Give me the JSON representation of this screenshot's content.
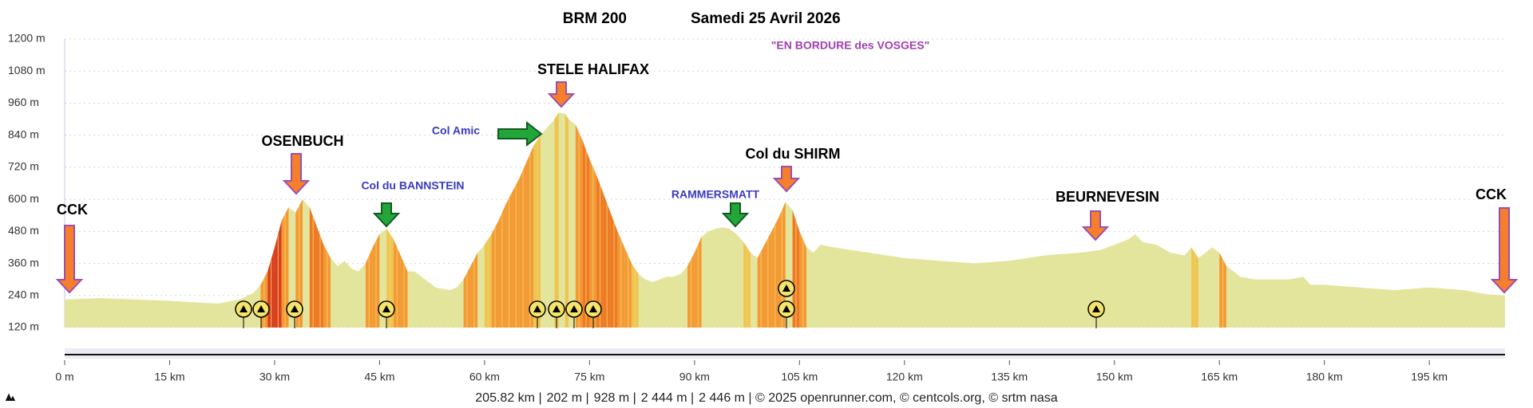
{
  "chart_data": {
    "type": "area",
    "title": "BRM 200",
    "date": "Samedi 25 Avril 2026",
    "subtitle": "\"EN BORDURE des VOSGES\"",
    "x": [
      0,
      5,
      10,
      15,
      20,
      22,
      25,
      27,
      28,
      29,
      30,
      31,
      32,
      33,
      34,
      35,
      36,
      37,
      38,
      39,
      40,
      41,
      42,
      43,
      44,
      45,
      46,
      47,
      48,
      49,
      50,
      51,
      52,
      53,
      55,
      56,
      57,
      58,
      59,
      60,
      61,
      62,
      63,
      64,
      65,
      66,
      67,
      68,
      69,
      70,
      70.6,
      71.5,
      72,
      73,
      74,
      75,
      76,
      77,
      78,
      79,
      80,
      81,
      82,
      83,
      84,
      85,
      86,
      87,
      88,
      89,
      90,
      91,
      92,
      93,
      94,
      95,
      96,
      97,
      98,
      99,
      100,
      101,
      102,
      103,
      104,
      105,
      106,
      107,
      108,
      110,
      115,
      120,
      125,
      130,
      135,
      140,
      145,
      148,
      150,
      152,
      153,
      154,
      156,
      158,
      160,
      161,
      162,
      163,
      164,
      165,
      166,
      168,
      170,
      175,
      177,
      178,
      180,
      185,
      190,
      195,
      200,
      203,
      205.82
    ],
    "values": [
      225,
      230,
      225,
      220,
      212,
      210,
      225,
      250,
      280,
      330,
      420,
      520,
      570,
      550,
      600,
      570,
      500,
      430,
      380,
      350,
      370,
      340,
      330,
      360,
      420,
      470,
      490,
      450,
      390,
      330,
      330,
      310,
      290,
      270,
      260,
      270,
      300,
      350,
      400,
      430,
      470,
      520,
      580,
      630,
      680,
      740,
      800,
      840,
      870,
      900,
      925,
      920,
      900,
      880,
      820,
      750,
      690,
      620,
      550,
      480,
      420,
      360,
      320,
      300,
      290,
      300,
      310,
      310,
      320,
      350,
      400,
      460,
      480,
      490,
      495,
      490,
      470,
      440,
      400,
      380,
      430,
      480,
      530,
      590,
      560,
      480,
      420,
      400,
      430,
      420,
      400,
      380,
      370,
      360,
      370,
      390,
      400,
      410,
      430,
      450,
      470,
      440,
      430,
      400,
      390,
      420,
      380,
      400,
      420,
      400,
      350,
      310,
      300,
      300,
      310,
      280,
      280,
      270,
      260,
      270,
      260,
      245,
      240
    ],
    "xlim": [
      0,
      205.82
    ],
    "ylim": [
      120,
      1200
    ],
    "xticks": [
      {
        "value": 0,
        "label": "0 m"
      },
      {
        "value": 15,
        "label": "15 km"
      },
      {
        "value": 30,
        "label": "30 km"
      },
      {
        "value": 45,
        "label": "45 km"
      },
      {
        "value": 60,
        "label": "60 km"
      },
      {
        "value": 75,
        "label": "75 km"
      },
      {
        "value": 90,
        "label": "90 km"
      },
      {
        "value": 105,
        "label": "105 km"
      },
      {
        "value": 120,
        "label": "120 km"
      },
      {
        "value": 135,
        "label": "135 km"
      },
      {
        "value": 150,
        "label": "150 km"
      },
      {
        "value": 165,
        "label": "165 km"
      },
      {
        "value": 180,
        "label": "180 km"
      },
      {
        "value": 195,
        "label": "195 km"
      }
    ],
    "yticks": [
      {
        "value": 1200,
        "label": "1200 m"
      },
      {
        "value": 1080,
        "label": "1080 m"
      },
      {
        "value": 960,
        "label": "960 m"
      },
      {
        "value": 840,
        "label": "840 m"
      },
      {
        "value": 720,
        "label": "720 m"
      },
      {
        "value": 600,
        "label": "600 m"
      },
      {
        "value": 480,
        "label": "480 m"
      },
      {
        "value": 360,
        "label": "360 m"
      },
      {
        "value": 240,
        "label": "240 m"
      },
      {
        "value": 120,
        "label": "120 m"
      }
    ],
    "grid": true,
    "color": "#e4e59c",
    "annotations": [
      "CCK",
      "OSENBUCH",
      "Col du BANNSTEIN",
      "Col Amic",
      "STELE  HALIFAX",
      "RAMMERSMATT",
      "Col du SHIRM",
      "BEURNEVESIN",
      "CCK"
    ],
    "footer": [
      "205.82 km |",
      "202 m |",
      "928 m |",
      "2 444 m |",
      "2 446 m | © 2025 openrunner.com, © centcols.org, © srtm nasa"
    ]
  }
}
